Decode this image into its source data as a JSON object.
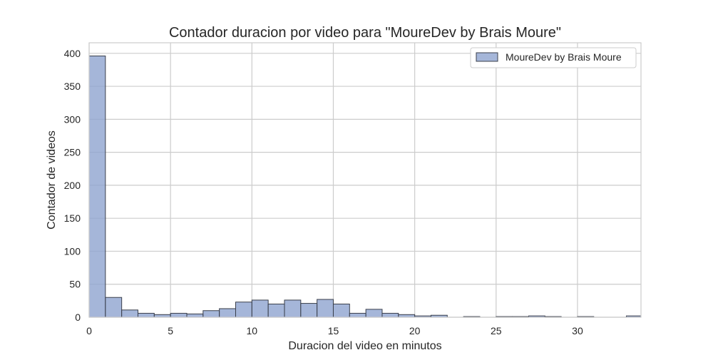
{
  "chart_data": {
    "type": "bar",
    "title": "Contador duracion por video para \"MoureDev by Brais Moure\"",
    "xlabel": "Duracion del video en minutos",
    "ylabel": "Contador de videos",
    "xlim": [
      0,
      33.9
    ],
    "ylim": [
      0,
      416
    ],
    "xticks": [
      0,
      5,
      10,
      15,
      20,
      25,
      30
    ],
    "yticks": [
      0,
      50,
      100,
      150,
      200,
      250,
      300,
      350,
      400
    ],
    "grid": true,
    "legend_position": "top-right",
    "colors": {
      "bar_fill": "#8fa4cf",
      "bar_edge": "#3a3f4b",
      "grid": "#cccccc",
      "frame": "#cccccc"
    },
    "series": [
      {
        "name": "MoureDev by Brais Moure",
        "bin_width": 1.0,
        "bin_starts": [
          0,
          1,
          2,
          3,
          4,
          5,
          6,
          7,
          8,
          9,
          10,
          11,
          12,
          13,
          14,
          15,
          16,
          17,
          18,
          19,
          20,
          21,
          22,
          23,
          24,
          25,
          26,
          27,
          28,
          29,
          30,
          31,
          32,
          33
        ],
        "values": [
          396,
          30,
          11,
          6,
          4,
          6,
          5,
          10,
          13,
          23,
          26,
          20,
          26,
          21,
          27,
          20,
          6,
          12,
          6,
          4,
          2,
          3,
          0,
          1,
          0,
          1,
          1,
          2,
          1,
          0,
          1,
          0,
          0,
          2
        ]
      }
    ]
  }
}
